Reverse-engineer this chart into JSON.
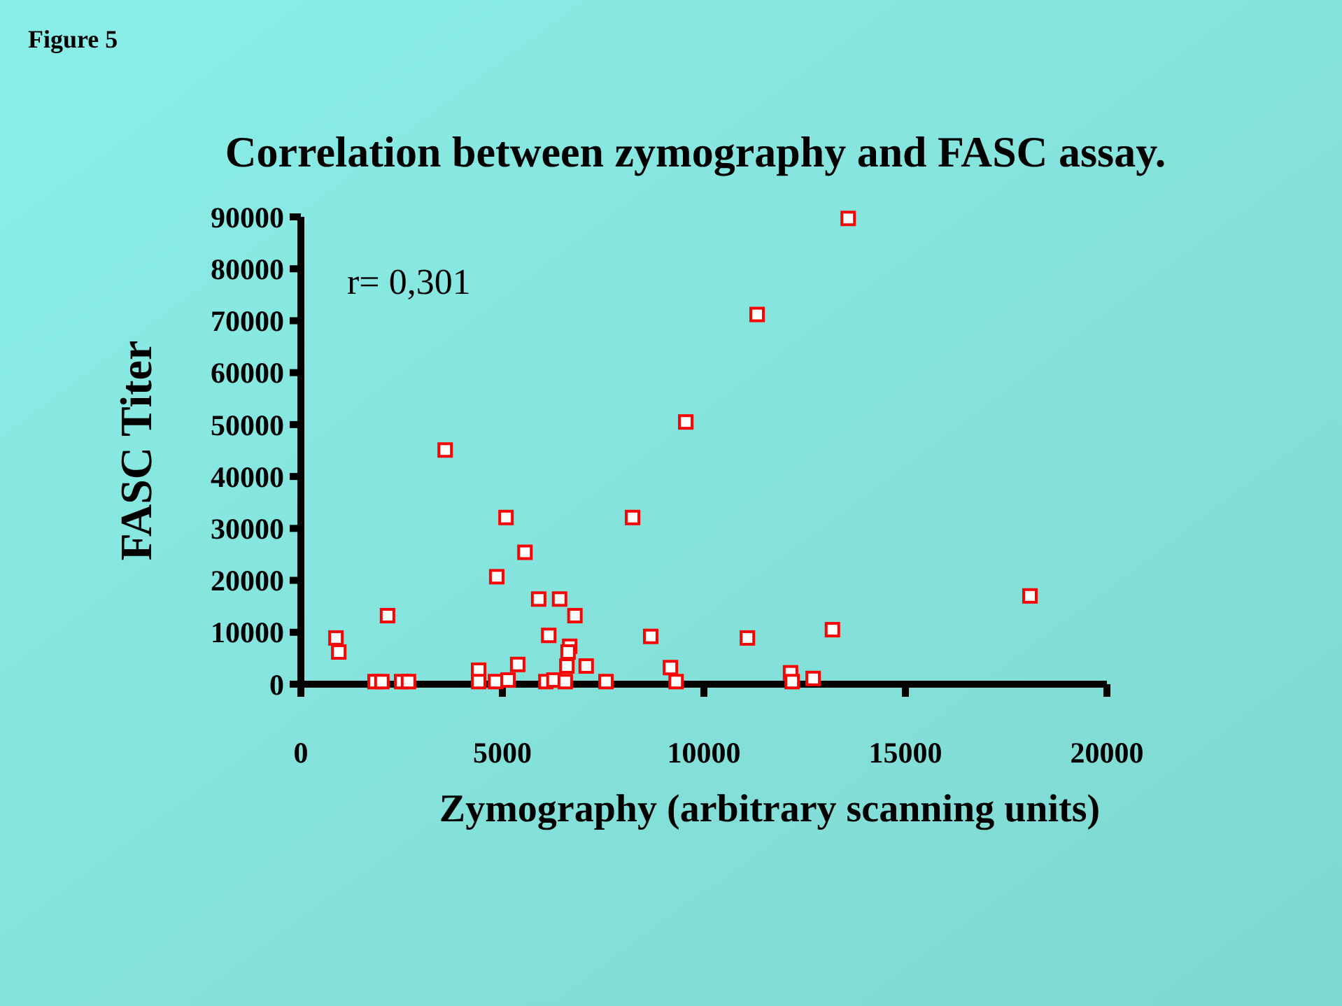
{
  "chart_data": {
    "type": "scatter",
    "title": "Correlation between zymography and FASC assay.",
    "xlabel": "Zymography (arbitrary scanning units)",
    "ylabel": "FASC Titer",
    "annotations": [
      "Figure 5",
      {
        "text": "r= 0,301"
      }
    ],
    "xlim": [
      0,
      20000
    ],
    "xticks": [
      0,
      5000,
      10000,
      15000,
      20000
    ],
    "ylim": [
      0,
      90000
    ],
    "yticks": [
      0,
      10000,
      20000,
      30000,
      40000,
      50000,
      60000,
      70000,
      80000,
      90000
    ],
    "grid": false,
    "marker": "square",
    "series": [
      {
        "color": "#ff0000",
        "x": [
          870,
          940,
          2150,
          1840,
          2010,
          2500,
          2670,
          3580,
          4410,
          4410,
          4830,
          4860,
          5140,
          5380,
          5090,
          5560,
          5900,
          6420,
          6150,
          6800,
          6670,
          6630,
          6600,
          7080,
          6080,
          6280,
          6560,
          7570,
          8680,
          9170,
          9310,
          9550,
          8230,
          11320,
          13580,
          18090,
          13190,
          12150,
          12190,
          12710,
          11080
        ],
        "values": [
          8900,
          6200,
          13200,
          500,
          500,
          500,
          500,
          45100,
          2700,
          500,
          500,
          20700,
          800,
          3800,
          32100,
          25400,
          16400,
          16400,
          9400,
          13200,
          7300,
          6200,
          3500,
          3500,
          500,
          800,
          500,
          500,
          9200,
          3200,
          500,
          50500,
          32100,
          71200,
          89700,
          17000,
          10500,
          2200,
          500,
          1100,
          8900
        ]
      }
    ]
  }
}
